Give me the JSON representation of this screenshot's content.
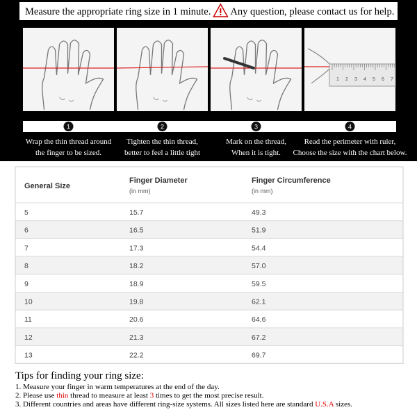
{
  "header": {
    "left": "Measure the appropriate ring size in 1 minute.",
    "right": "Any question, please contact us for help."
  },
  "steps": [
    {
      "number": "1",
      "lines": [
        "Wrap the thin thread around",
        "the finger to be sized."
      ]
    },
    {
      "number": "2",
      "lines": [
        "Tighten the thin thread,",
        "better to feel a little tight"
      ]
    },
    {
      "number": "3",
      "lines": [
        "Mark on the thread,",
        "When it is tight."
      ]
    },
    {
      "number": "4",
      "lines": [
        "Read the perimeter with ruler,",
        "Choose the size with the chart below."
      ]
    }
  ],
  "ruler_labels": [
    "1",
    "2",
    "3",
    "4",
    "5",
    "6",
    "7"
  ],
  "table": {
    "headers": [
      {
        "title": "General Size"
      },
      {
        "title": "Finger Diameter",
        "unit": "(in mm)"
      },
      {
        "title": "Finger Circumference",
        "unit": "(in mm)"
      }
    ],
    "rows": [
      [
        "5",
        "15.7",
        "49.3"
      ],
      [
        "6",
        "16.5",
        "51.9"
      ],
      [
        "7",
        "17.3",
        "54.4"
      ],
      [
        "8",
        "18.2",
        "57.0"
      ],
      [
        "9",
        "18.9",
        "59.5"
      ],
      [
        "10",
        "19.8",
        "62.1"
      ],
      [
        "11",
        "20.6",
        "64.6"
      ],
      [
        "12",
        "21.3",
        "67.2"
      ],
      [
        "13",
        "22.2",
        "69.7"
      ]
    ]
  },
  "tips": {
    "title": "Tips for finding your ring size:",
    "items": [
      [
        "1. Measure your finger in warm temperatures at the end of the day."
      ],
      [
        "2. Please use ",
        "thin",
        " thread to measure at least ",
        "3",
        " times to get the most precise result."
      ],
      [
        "3. Different countries and areas have different ring-size systems. All sizes listed here are standard ",
        "U.S.A",
        " sizes."
      ]
    ]
  }
}
